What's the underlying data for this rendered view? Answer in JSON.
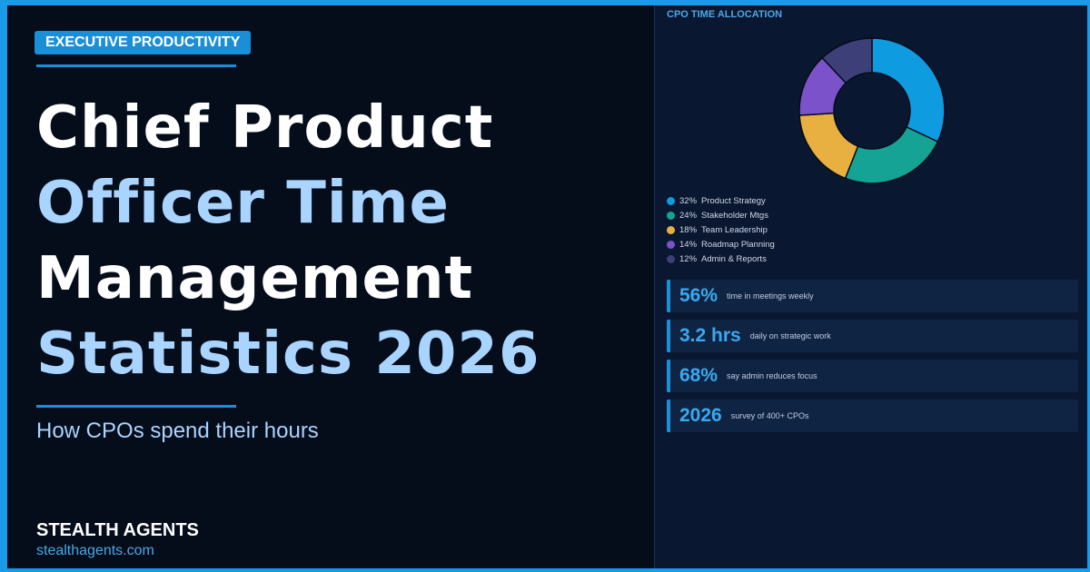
{
  "badge": "EXECUTIVE PRODUCTIVITY",
  "title_lines": [
    {
      "text": "Chief Product",
      "color": "#ffffff"
    },
    {
      "text": "Officer Time",
      "color": "#a8d4ff"
    },
    {
      "text": "Management",
      "color": "#ffffff"
    },
    {
      "text": "Statistics 2026",
      "color": "#a8d4ff"
    }
  ],
  "subtitle": "How CPOs spend their hours",
  "footer": {
    "brand": "STEALTH AGENTS",
    "url": "stealthagents.com"
  },
  "chart_data": {
    "type": "donut",
    "title": "CPO TIME ALLOCATION",
    "categories": [
      "Product Strategy",
      "Stakeholder Mtgs",
      "Team Leadership",
      "Roadmap Planning",
      "Admin & Reports"
    ],
    "values": [
      32,
      24,
      18,
      14,
      12
    ],
    "value_labels": [
      "32%",
      "24%",
      "18%",
      "14%",
      "12%"
    ],
    "colors": [
      "#0e9be0",
      "#14a394",
      "#e8b040",
      "#7b52c9",
      "#3d3f78"
    ]
  },
  "stats": [
    {
      "value": "56%",
      "text": "time in meetings weekly"
    },
    {
      "value": "3.2 hrs",
      "text": "daily on strategic work"
    },
    {
      "value": "68%",
      "text": "say admin reduces focus"
    },
    {
      "value": "2026",
      "text": "survey of 400+ CPOs"
    }
  ]
}
